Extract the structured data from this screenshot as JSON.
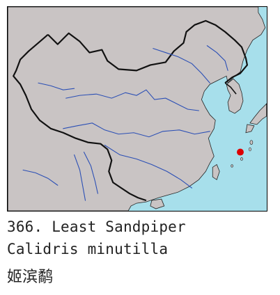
{
  "map": {
    "colors": {
      "water": "#a7dfeb",
      "land": "#c9c4c4",
      "border": "#111111",
      "river": "#2b4fb5",
      "marker": "#dd0000"
    },
    "icons": [
      "sighting-marker-icon"
    ]
  },
  "caption": {
    "common_name": "366. Least Sandpiper",
    "scientific_name": "Calidris minutilla",
    "chinese_name": "姬滨鹬"
  }
}
